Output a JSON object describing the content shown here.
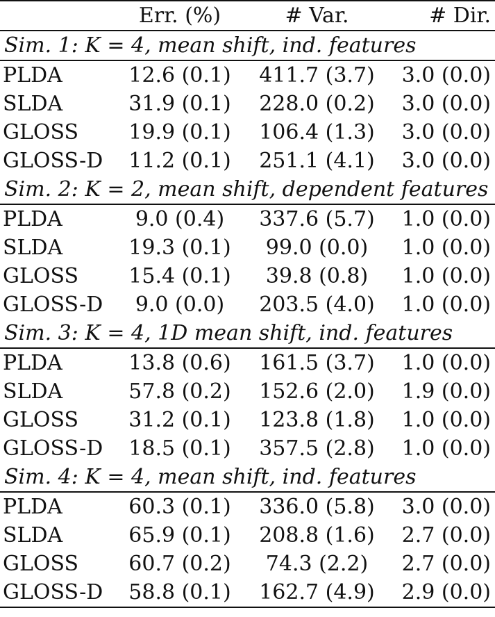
{
  "headers": [
    "",
    "Err. (%)",
    "# Var.",
    "# Dir."
  ],
  "sections": [
    {
      "title": "Sim. 1: K = 4, mean shift, ind. features",
      "rows": [
        [
          "PLDA",
          "12.6 (0.1)",
          "411.7 (3.7)",
          "3.0 (0.0)"
        ],
        [
          "SLDA",
          "31.9 (0.1)",
          "228.0 (0.2)",
          "3.0 (0.0)"
        ],
        [
          "GLOSS",
          "19.9 (0.1)",
          "106.4 (1.3)",
          "3.0 (0.0)"
        ],
        [
          "GLOSS-D",
          "11.2 (0.1)",
          "251.1 (4.1)",
          "3.0 (0.0)"
        ]
      ]
    },
    {
      "title": "Sim. 2: K = 2, mean shift, dependent features",
      "rows": [
        [
          "PLDA",
          "9.0 (0.4)",
          "337.6 (5.7)",
          "1.0 (0.0)"
        ],
        [
          "SLDA",
          "19.3 (0.1)",
          "99.0 (0.0)",
          "1.0 (0.0)"
        ],
        [
          "GLOSS",
          "15.4 (0.1)",
          "39.8 (0.8)",
          "1.0 (0.0)"
        ],
        [
          "GLOSS-D",
          "9.0 (0.0)",
          "203.5 (4.0)",
          "1.0 (0.0)"
        ]
      ]
    },
    {
      "title": "Sim. 3: K = 4, 1D mean shift, ind. features",
      "rows": [
        [
          "PLDA",
          "13.8 (0.6)",
          "161.5 (3.7)",
          "1.0 (0.0)"
        ],
        [
          "SLDA",
          "57.8 (0.2)",
          "152.6 (2.0)",
          "1.9 (0.0)"
        ],
        [
          "GLOSS",
          "31.2 (0.1)",
          "123.8 (1.8)",
          "1.0 (0.0)"
        ],
        [
          "GLOSS-D",
          "18.5 (0.1)",
          "357.5 (2.8)",
          "1.0 (0.0)"
        ]
      ]
    },
    {
      "title": "Sim. 4: K = 4, mean shift, ind. features",
      "rows": [
        [
          "PLDA",
          "60.3 (0.1)",
          "336.0 (5.8)",
          "3.0 (0.0)"
        ],
        [
          "SLDA",
          "65.9 (0.1)",
          "208.8 (1.6)",
          "2.7 (0.0)"
        ],
        [
          "GLOSS",
          "60.7 (0.2)",
          "74.3 (2.2)",
          "2.7 (0.0)"
        ],
        [
          "GLOSS-D",
          "58.8 (0.1)",
          "162.7 (4.9)",
          "2.9 (0.0)"
        ]
      ]
    }
  ]
}
